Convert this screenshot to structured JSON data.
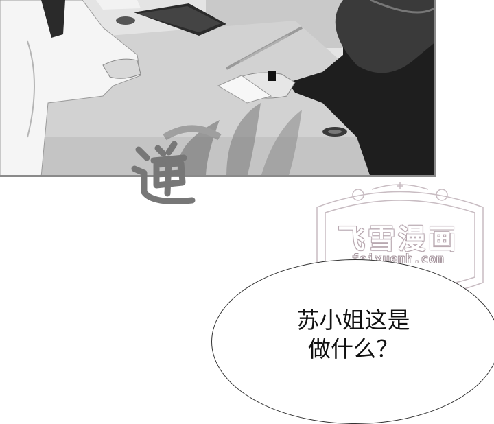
{
  "speech_bubble": {
    "line1": "苏小姐这是",
    "line2": "做什么？"
  },
  "watermark": {
    "title": "飞雪漫画",
    "url": "feixuemh.com"
  },
  "sound_effect": {
    "text": "递"
  },
  "colors": {
    "panel_border": "#8a8a8a",
    "watermark_outline": "#b8a8b0",
    "text": "#111111"
  }
}
